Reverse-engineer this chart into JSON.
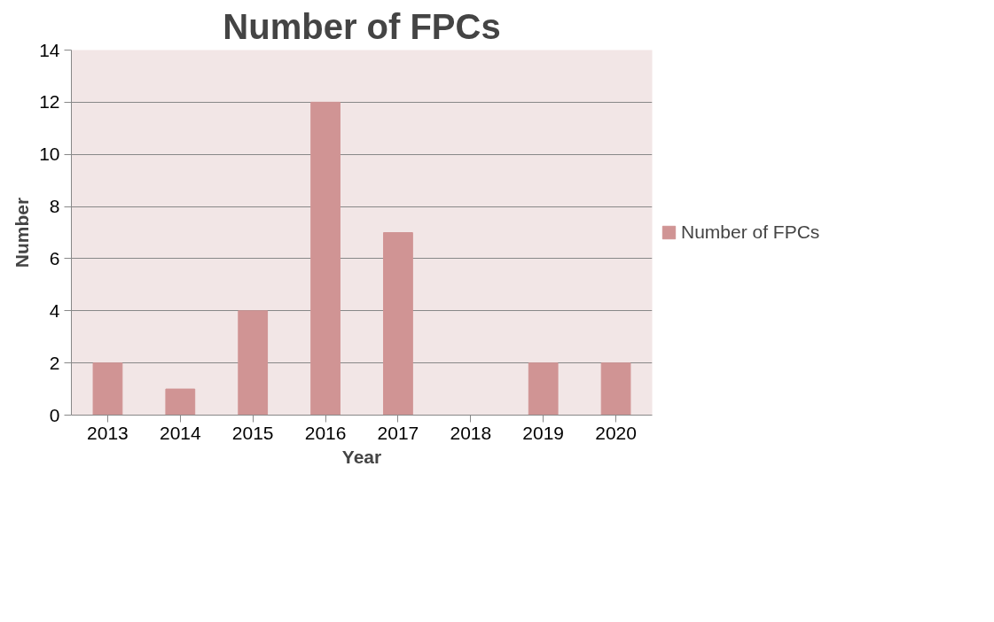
{
  "chart_data": {
    "type": "bar",
    "title": "Number of FPCs",
    "xlabel": "Year",
    "ylabel": "Number",
    "categories": [
      "2013",
      "2014",
      "2015",
      "2016",
      "2017",
      "2018",
      "2019",
      "2020"
    ],
    "series": [
      {
        "name": "Number of FPCs",
        "color": "#d09494",
        "values": [
          2,
          1,
          4,
          12,
          7,
          0,
          2,
          2
        ]
      }
    ],
    "ylim": [
      0,
      14
    ],
    "yticks": [
      0,
      2,
      4,
      6,
      8,
      10,
      12,
      14
    ],
    "grid": "y",
    "legend": "right"
  }
}
